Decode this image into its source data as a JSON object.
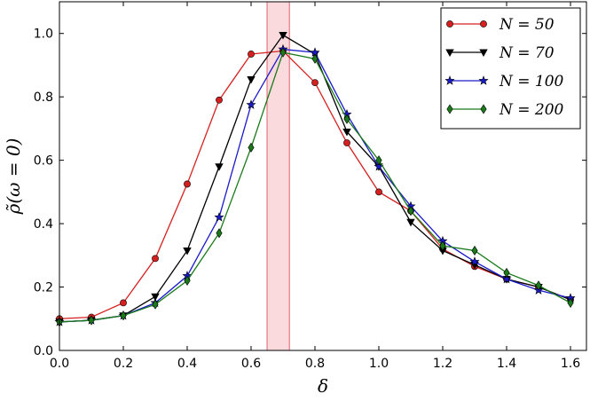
{
  "chart_data": {
    "type": "line",
    "xlabel": "δ",
    "ylabel": "ρ̃(ω = 0)",
    "xlim": [
      0.0,
      1.65
    ],
    "ylim": [
      0.0,
      1.1
    ],
    "xticks": [
      "0.0",
      "0.2",
      "0.4",
      "0.6",
      "0.8",
      "1.0",
      "1.2",
      "1.4",
      "1.6"
    ],
    "yticks": [
      "0.0",
      "0.2",
      "0.4",
      "0.6",
      "0.8",
      "1.0"
    ],
    "grid": false,
    "legend_position": "top-right",
    "highlight_band": {
      "x_range": [
        0.65,
        0.72
      ],
      "color": "#f8c8cc"
    },
    "x": [
      0.0,
      0.1,
      0.2,
      0.3,
      0.4,
      0.5,
      0.6,
      0.7,
      0.8,
      0.9,
      1.0,
      1.1,
      1.2,
      1.3,
      1.4,
      1.5,
      1.6
    ],
    "series": [
      {
        "name": "N = 50",
        "color": "#d62020",
        "marker": "circle",
        "values": [
          0.1,
          0.105,
          0.15,
          0.29,
          0.525,
          0.79,
          0.935,
          0.945,
          0.845,
          0.655,
          0.5,
          0.44,
          0.32,
          0.265,
          0.225,
          0.2,
          0.16
        ]
      },
      {
        "name": "N = 70",
        "color": "#000000",
        "marker": "triangle-down",
        "values": [
          0.09,
          0.095,
          0.11,
          0.17,
          0.315,
          0.58,
          0.855,
          0.995,
          0.935,
          0.69,
          0.58,
          0.405,
          0.315,
          0.27,
          0.225,
          0.2,
          0.16
        ]
      },
      {
        "name": "N = 100",
        "color": "#1a1acc",
        "marker": "star",
        "values": [
          0.09,
          0.095,
          0.11,
          0.15,
          0.235,
          0.42,
          0.775,
          0.95,
          0.94,
          0.745,
          0.58,
          0.455,
          0.345,
          0.28,
          0.225,
          0.19,
          0.165
        ]
      },
      {
        "name": "N = 200",
        "color": "#1a7a1a",
        "marker": "diamond",
        "values": [
          0.09,
          0.095,
          0.11,
          0.145,
          0.22,
          0.37,
          0.64,
          0.94,
          0.92,
          0.73,
          0.6,
          0.44,
          0.33,
          0.315,
          0.245,
          0.205,
          0.15
        ]
      }
    ]
  }
}
